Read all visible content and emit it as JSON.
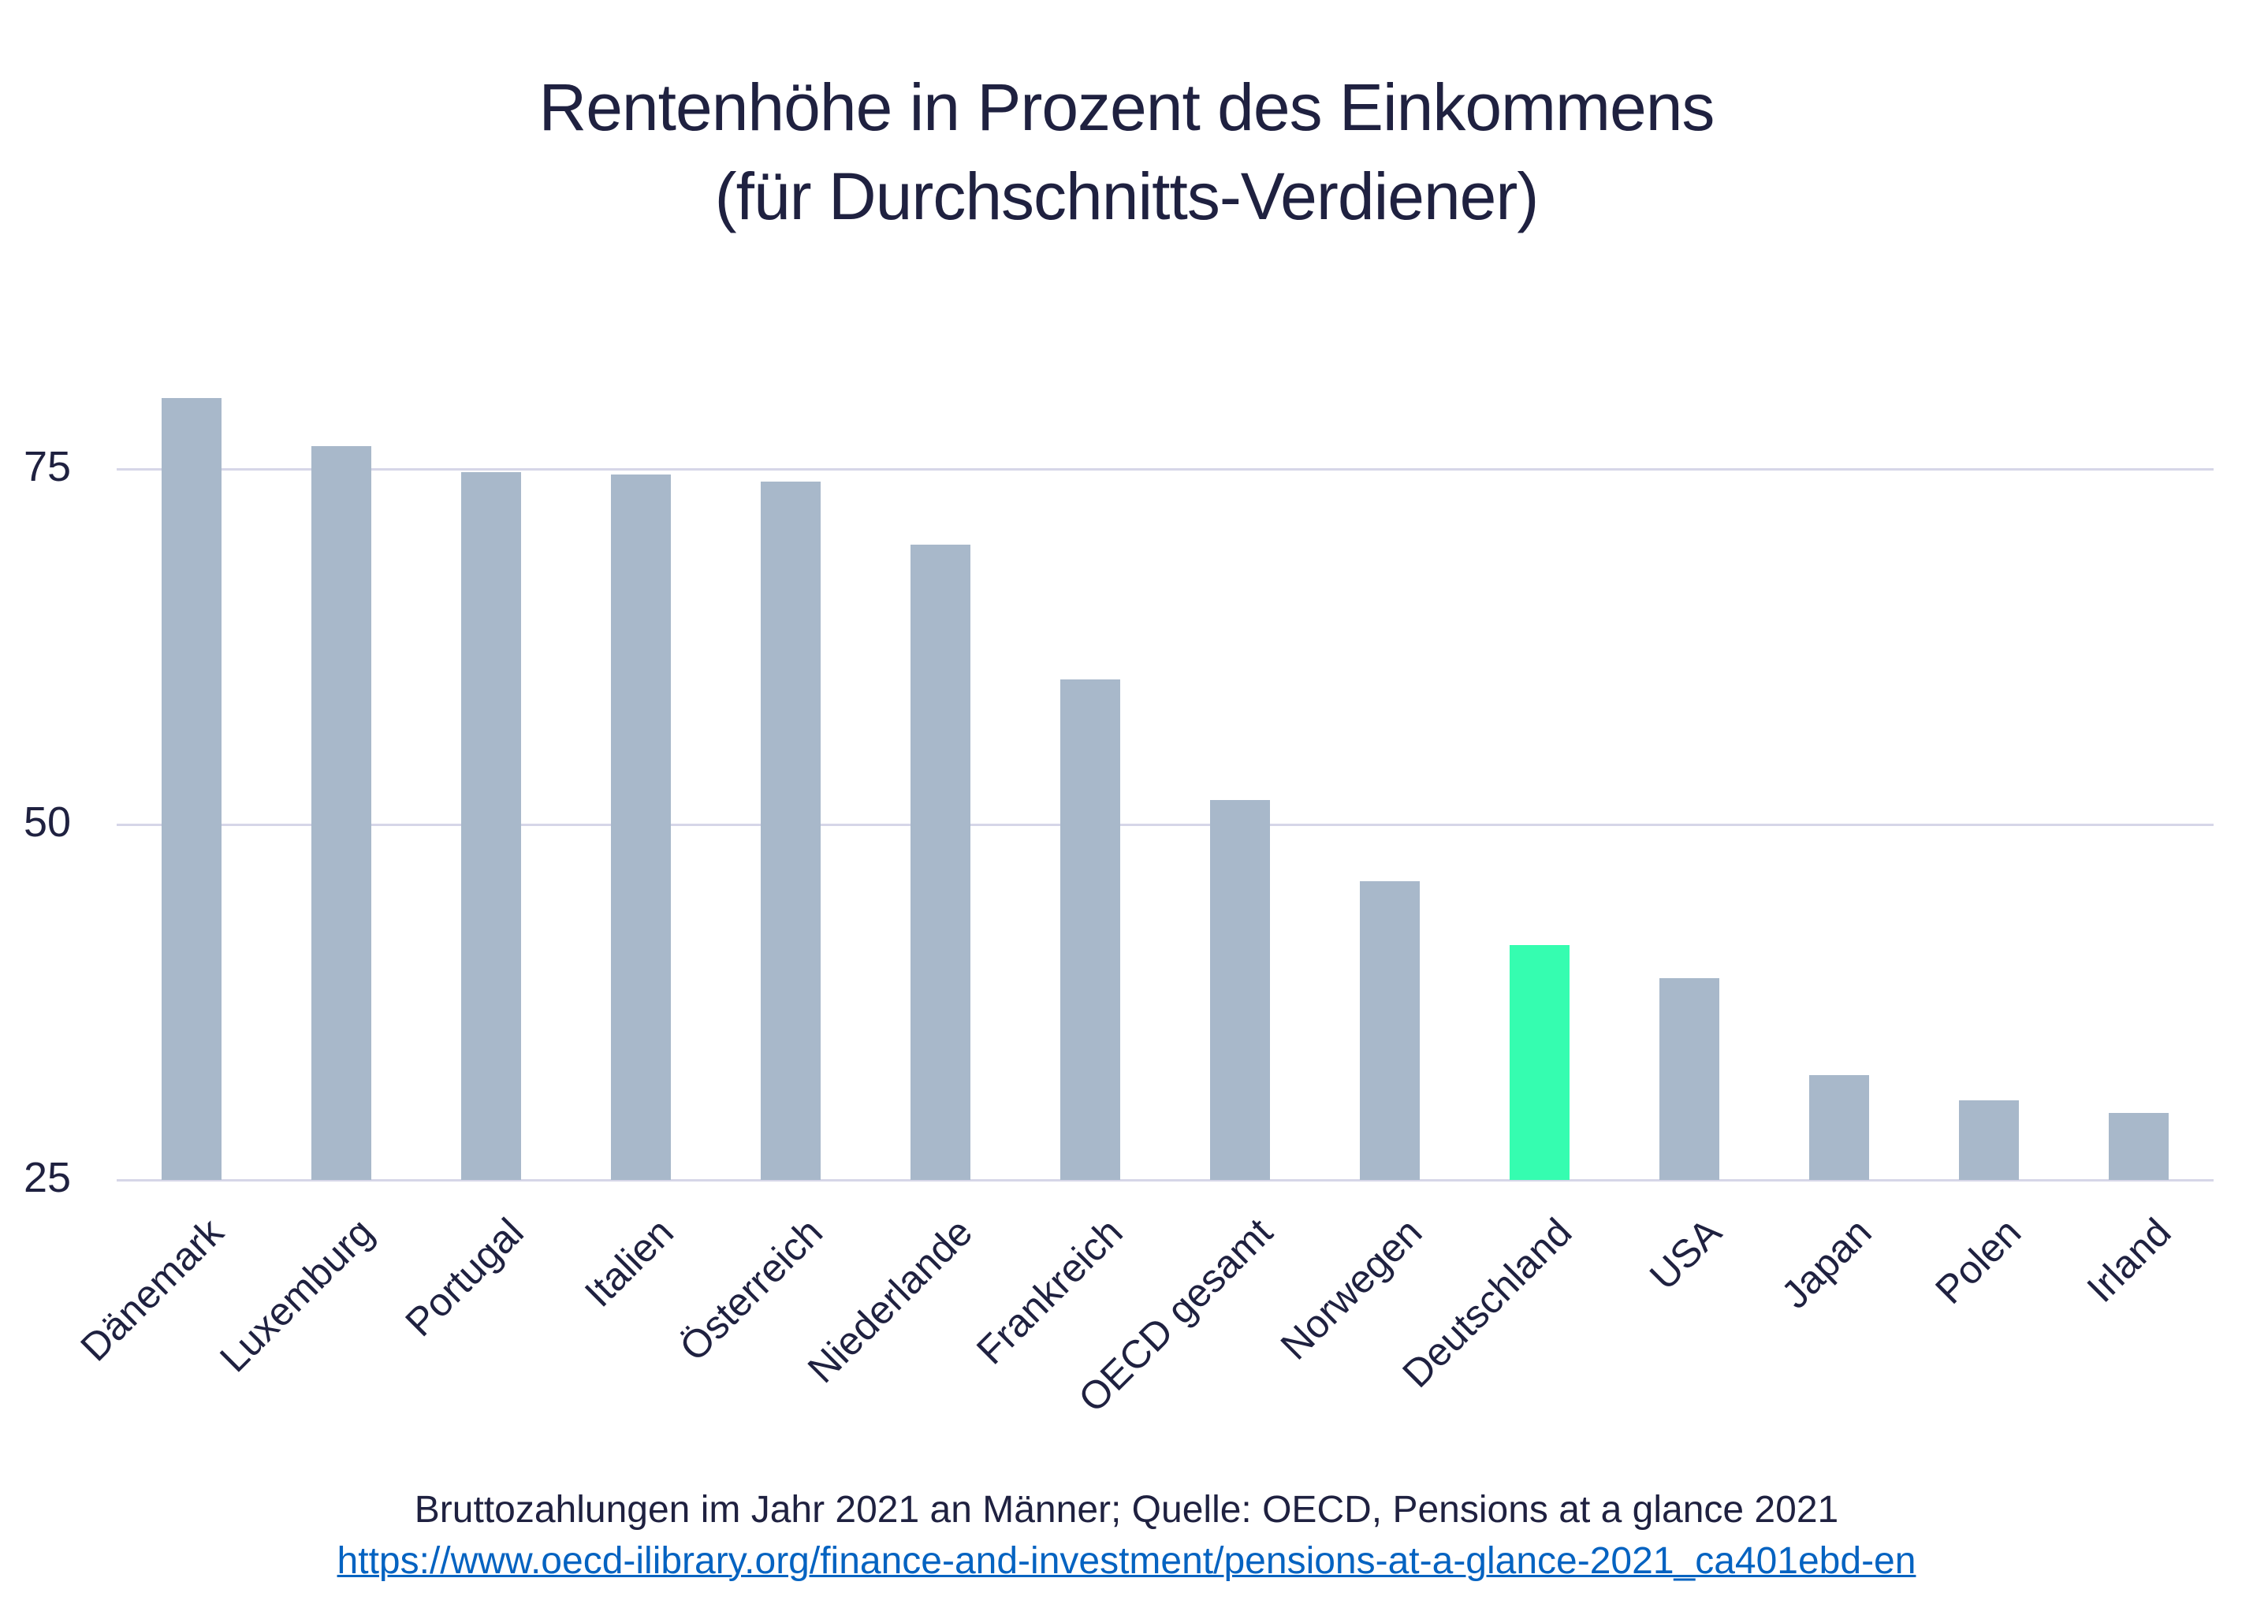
{
  "chart_data": {
    "type": "bar",
    "title": "Rentenhöhe in Prozent des Einkommens (für Durchschnitts-Verdiener)",
    "title_lines": [
      "Rentenhöhe in Prozent des Einkommens",
      "(für Durchschnitts-Verdiener)"
    ],
    "xlabel": "",
    "ylabel": "",
    "ylim": [
      25,
      82
    ],
    "yticks": [
      25,
      50,
      75
    ],
    "grid": true,
    "legend": null,
    "categories": [
      "Dänemark",
      "Luxemburg",
      "Portugal",
      "Italien",
      "Österreich",
      "Niederlande",
      "Frankreich",
      "OECD gesamt",
      "Norwegen",
      "Deutschland",
      "USA",
      "Japan",
      "Polen",
      "Irland"
    ],
    "values": [
      80.0,
      76.6,
      74.8,
      74.6,
      74.1,
      69.7,
      60.2,
      51.7,
      46.0,
      41.5,
      39.2,
      32.4,
      30.6,
      29.7
    ],
    "highlight_category": "Deutschland",
    "colors": {
      "bar_default": "#a8b8ca",
      "bar_highlight": "#35fdb0",
      "gridline": "#d6d6e8",
      "text": "#1f2140",
      "link": "#0563c1"
    }
  },
  "footer": {
    "note": "Bruttozahlungen im Jahr 2021 an Männer; Quelle: OECD, Pensions at a glance 2021",
    "link_text": "https://www.oecd-ilibrary.org/finance-and-investment/pensions-at-a-glance-2021_ca401ebd-en"
  }
}
